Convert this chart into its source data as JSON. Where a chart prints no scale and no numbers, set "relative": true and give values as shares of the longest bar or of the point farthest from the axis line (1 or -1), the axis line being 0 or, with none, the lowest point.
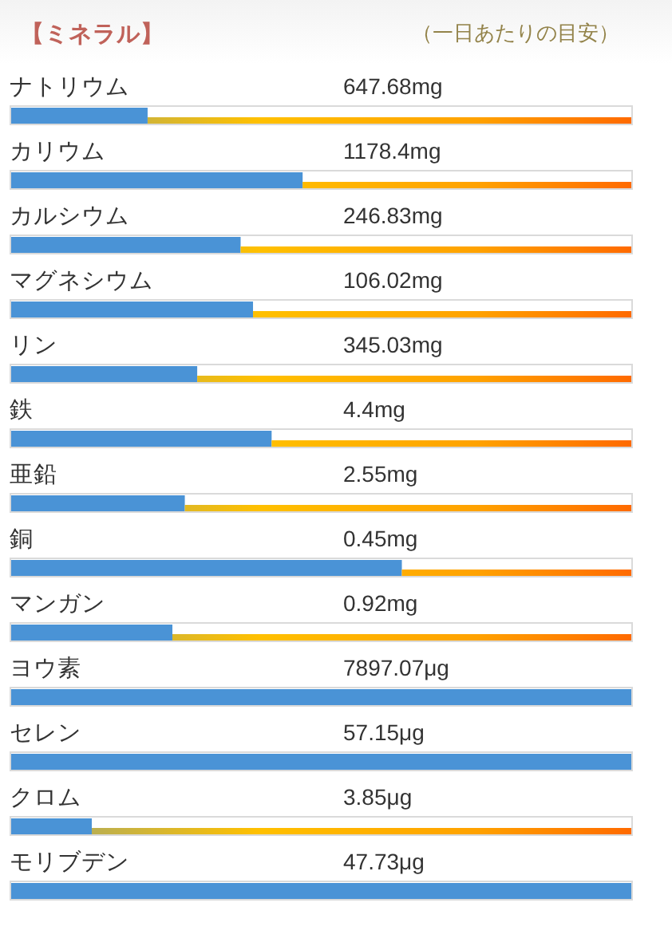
{
  "chart_data": {
    "type": "bar",
    "orientation": "horizontal",
    "stacked": true,
    "relative": true,
    "title": "【ミネラル】",
    "subtitle": "（一日あたりの目安）",
    "categories": [
      "ナトリウム",
      "カリウム",
      "カルシウム",
      "マグネシウム",
      "リン",
      "鉄",
      "亜鉛",
      "銅",
      "マンガン",
      "ヨウ素",
      "セレン",
      "クロム",
      "モリブデン"
    ],
    "series": [
      {
        "color": "#4a93d6",
        "values": [
          0.22,
          0.47,
          0.37,
          0.39,
          0.3,
          0.42,
          0.28,
          0.63,
          0.26,
          1,
          1,
          0.13,
          1
        ]
      },
      {
        "color": "#ffc000",
        "values": [
          0.78,
          0.53,
          0.63,
          0.61,
          0.7,
          0.58,
          0.72,
          0.37,
          0.74,
          null,
          null,
          0.87,
          null
        ]
      }
    ],
    "annotations": [
      "647.68mg",
      "1178.4mg",
      "246.83mg",
      "106.02mg",
      "345.03mg",
      "4.4mg",
      "2.55mg",
      "0.45mg",
      "0.92mg",
      "7897.07μg",
      "57.15μg",
      "3.85μg",
      "47.73μg"
    ]
  }
}
